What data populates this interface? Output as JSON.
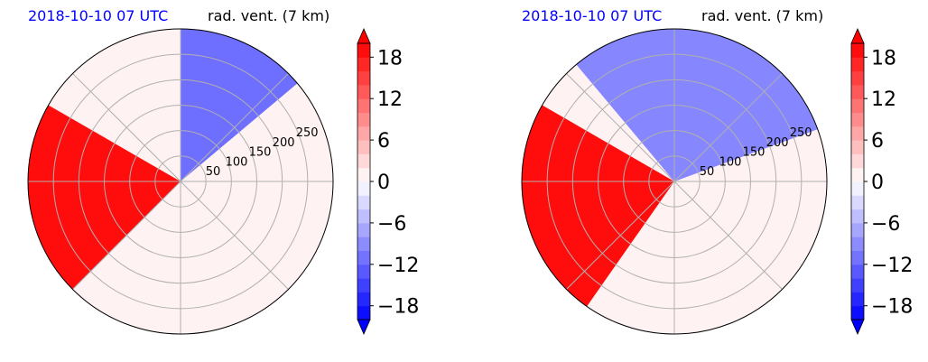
{
  "chart_data": [
    {
      "type": "heatmap",
      "projection": "polar",
      "title_left": "2018-10-10 07 UTC",
      "title_right": "rad. vent. (7 km)",
      "radial_ticks": [
        50,
        100,
        150,
        200,
        250
      ],
      "rmax": 300,
      "spokes_deg": [
        0,
        45,
        90,
        135,
        180,
        225,
        270,
        315
      ],
      "colorbar": {
        "min": -20,
        "max": 20,
        "step": 2,
        "ticks": [
          18,
          12,
          6,
          0,
          -6,
          -12,
          -18
        ],
        "extend": "both"
      },
      "regions": [
        {
          "sign": "positive",
          "description_value": 20,
          "sector_deg": [
            150,
            225
          ]
        },
        {
          "sign": "negative",
          "description_value": -12,
          "sector_deg": [
            40,
            90
          ]
        }
      ]
    },
    {
      "type": "heatmap",
      "projection": "polar",
      "title_left": "2018-10-10 07 UTC",
      "title_right": "rad. vent. (7 km)",
      "radial_ticks": [
        50,
        100,
        150,
        200,
        250
      ],
      "rmax": 300,
      "spokes_deg": [
        0,
        45,
        90,
        135,
        180,
        225,
        270,
        315
      ],
      "colorbar": {
        "min": -20,
        "max": 20,
        "step": 2,
        "ticks": [
          18,
          12,
          6,
          0,
          -6,
          -12,
          -18
        ],
        "extend": "both"
      },
      "regions": [
        {
          "sign": "positive",
          "description_value": 20,
          "sector_deg": [
            150,
            235
          ]
        },
        {
          "sign": "negative",
          "description_value": -10,
          "sector_deg": [
            20,
            130
          ]
        }
      ]
    }
  ],
  "colors": {
    "title_left": "#0000ff",
    "red": "#ff0000",
    "blue": "#0000ff",
    "grid": "#b0b0b0"
  }
}
